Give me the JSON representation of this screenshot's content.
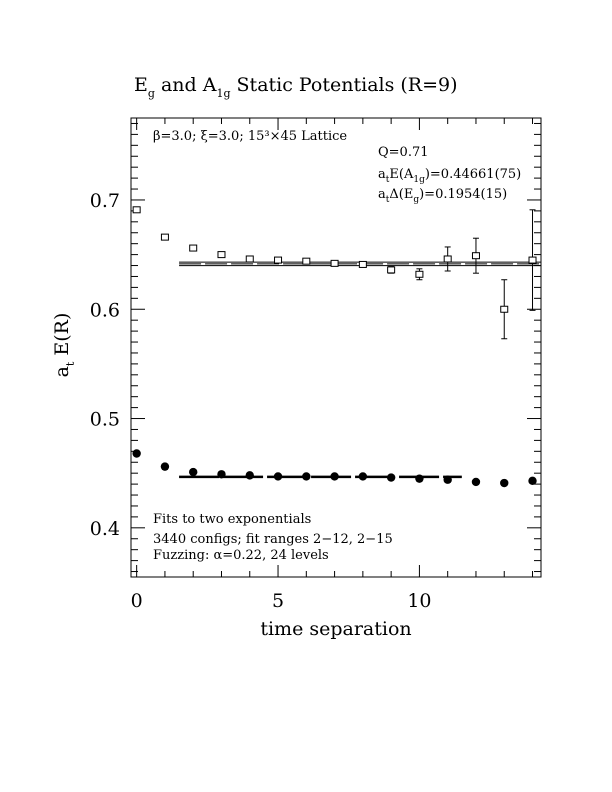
{
  "chart_data": {
    "type": "scatter",
    "title": {
      "main1": "E",
      "sub1": "g",
      "main2": " and A",
      "sub2": "1g",
      "main3": " Static Potentials (R=9)"
    },
    "xlabel": "time separation",
    "ylabel": {
      "main": "a",
      "sub": "t",
      "rest": " E(R)"
    },
    "xlim": [
      -0.2,
      14.3
    ],
    "ylim": [
      0.355,
      0.775
    ],
    "x_ticks": [
      0,
      5,
      10
    ],
    "x_tick_labels": [
      "0",
      "5",
      "10"
    ],
    "y_ticks": [
      0.4,
      0.5,
      0.6,
      0.7
    ],
    "y_tick_labels": [
      "0.4",
      "0.5",
      "0.6",
      "0.7"
    ],
    "series": [
      {
        "marker": "open-square",
        "points": [
          {
            "x": 0,
            "y": 0.691,
            "err": 0
          },
          {
            "x": 1,
            "y": 0.666,
            "err": 0
          },
          {
            "x": 2,
            "y": 0.656,
            "err": 0
          },
          {
            "x": 3,
            "y": 0.65,
            "err": 0
          },
          {
            "x": 4,
            "y": 0.646,
            "err": 0
          },
          {
            "x": 5,
            "y": 0.645,
            "err": 0
          },
          {
            "x": 6,
            "y": 0.644,
            "err": 0
          },
          {
            "x": 7,
            "y": 0.642,
            "err": 0
          },
          {
            "x": 8,
            "y": 0.641,
            "err": 0.002
          },
          {
            "x": 9,
            "y": 0.636,
            "err": 0.003
          },
          {
            "x": 10,
            "y": 0.632,
            "err": 0.005
          },
          {
            "x": 11,
            "y": 0.646,
            "err": 0.011
          },
          {
            "x": 12,
            "y": 0.649,
            "err": 0.016
          },
          {
            "x": 13,
            "y": 0.6,
            "err": 0.027
          },
          {
            "x": 14,
            "y": 0.645,
            "err": 0.046
          }
        ]
      },
      {
        "marker": "filled-circle",
        "points": [
          {
            "x": 0,
            "y": 0.468,
            "err": 0
          },
          {
            "x": 1,
            "y": 0.456,
            "err": 0
          },
          {
            "x": 2,
            "y": 0.451,
            "err": 0
          },
          {
            "x": 3,
            "y": 0.449,
            "err": 0
          },
          {
            "x": 4,
            "y": 0.448,
            "err": 0
          },
          {
            "x": 5,
            "y": 0.447,
            "err": 0
          },
          {
            "x": 6,
            "y": 0.447,
            "err": 0
          },
          {
            "x": 7,
            "y": 0.447,
            "err": 0
          },
          {
            "x": 8,
            "y": 0.447,
            "err": 0
          },
          {
            "x": 9,
            "y": 0.446,
            "err": 0
          },
          {
            "x": 10,
            "y": 0.445,
            "err": 0
          },
          {
            "x": 11,
            "y": 0.444,
            "err": 0
          },
          {
            "x": 12,
            "y": 0.442,
            "err": 0
          },
          {
            "x": 13,
            "y": 0.441,
            "err": 0
          },
          {
            "x": 14,
            "y": 0.443,
            "err": 0
          }
        ]
      }
    ],
    "fits": [
      {
        "x_range": [
          1.5,
          14.3
        ],
        "center": 0.6415,
        "band": 0.0016,
        "style": "double-band"
      },
      {
        "x_range": [
          1.5,
          11.5
        ],
        "center": 0.4466,
        "band": 0,
        "style": "thick-line"
      }
    ],
    "annotations": {
      "lattice": "β=3.0; ξ=3.0; 15³×45 Lattice",
      "q": "Q=0.71",
      "fit1": {
        "a": "a",
        "a_sub": "t",
        "mid": "E(A",
        "mid_sub": "1g",
        "tail": ")=0.44661(75)"
      },
      "fit2": {
        "a": "a",
        "a_sub": "t",
        "mid": "Δ(E",
        "mid_sub": "g",
        "tail": ")=0.1954(15)"
      },
      "note1": "Fits to two exponentials",
      "note2": "3440 configs; fit ranges 2−12, 2−15",
      "note3": "Fuzzing: α=0.22, 24 levels"
    }
  }
}
